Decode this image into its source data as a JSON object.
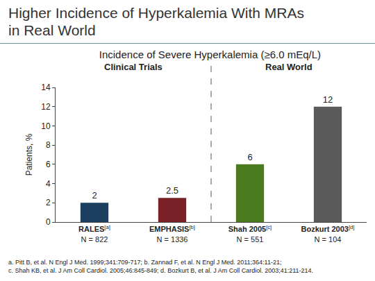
{
  "chart_data": {
    "type": "bar",
    "title": "Higher Incidence of Hyperkalemia With MRAs in Real World",
    "subtitle": "Incidence of Severe Hyperkalemia (≥6.0 mEq/L)",
    "ylabel": "Patients, %",
    "categories": [
      "RALES",
      "EMPHASIS",
      "Shah 2005",
      "Bozkurt 2003"
    ],
    "category_refs": [
      "[a]",
      "[b]",
      "[c]",
      "[d]"
    ],
    "category_notes": [
      "N = 822",
      "N = 1336",
      "N = 551",
      "N = 104"
    ],
    "values": [
      2,
      2.5,
      6,
      12
    ],
    "colors": [
      "#1c3f5f",
      "#7a2127",
      "#4b7a1f",
      "#5a5a5a"
    ],
    "ylim": [
      0,
      14
    ],
    "yticks": [
      0,
      2,
      4,
      6,
      8,
      10,
      12,
      14
    ],
    "grid": false,
    "data_labels": true,
    "groups": [
      {
        "label": "Clinical Trials",
        "categories": [
          "RALES",
          "EMPHASIS"
        ]
      },
      {
        "label": "Real World",
        "categories": [
          "Shah 2005",
          "Bozkurt 2003"
        ]
      }
    ],
    "footnotes": [
      "a. Pitt B, et al. N Engl J Med. 1999;341:709-717; b. Zannad F, et al. N Engl J Med. 2011;364:11-21;",
      "c. Shah KB, et al. J Am Coll Cardiol. 2005;46:845-849; d. Bozkurt B, et al. J Am Coll Cardiol. 2003;41:211-214."
    ]
  }
}
